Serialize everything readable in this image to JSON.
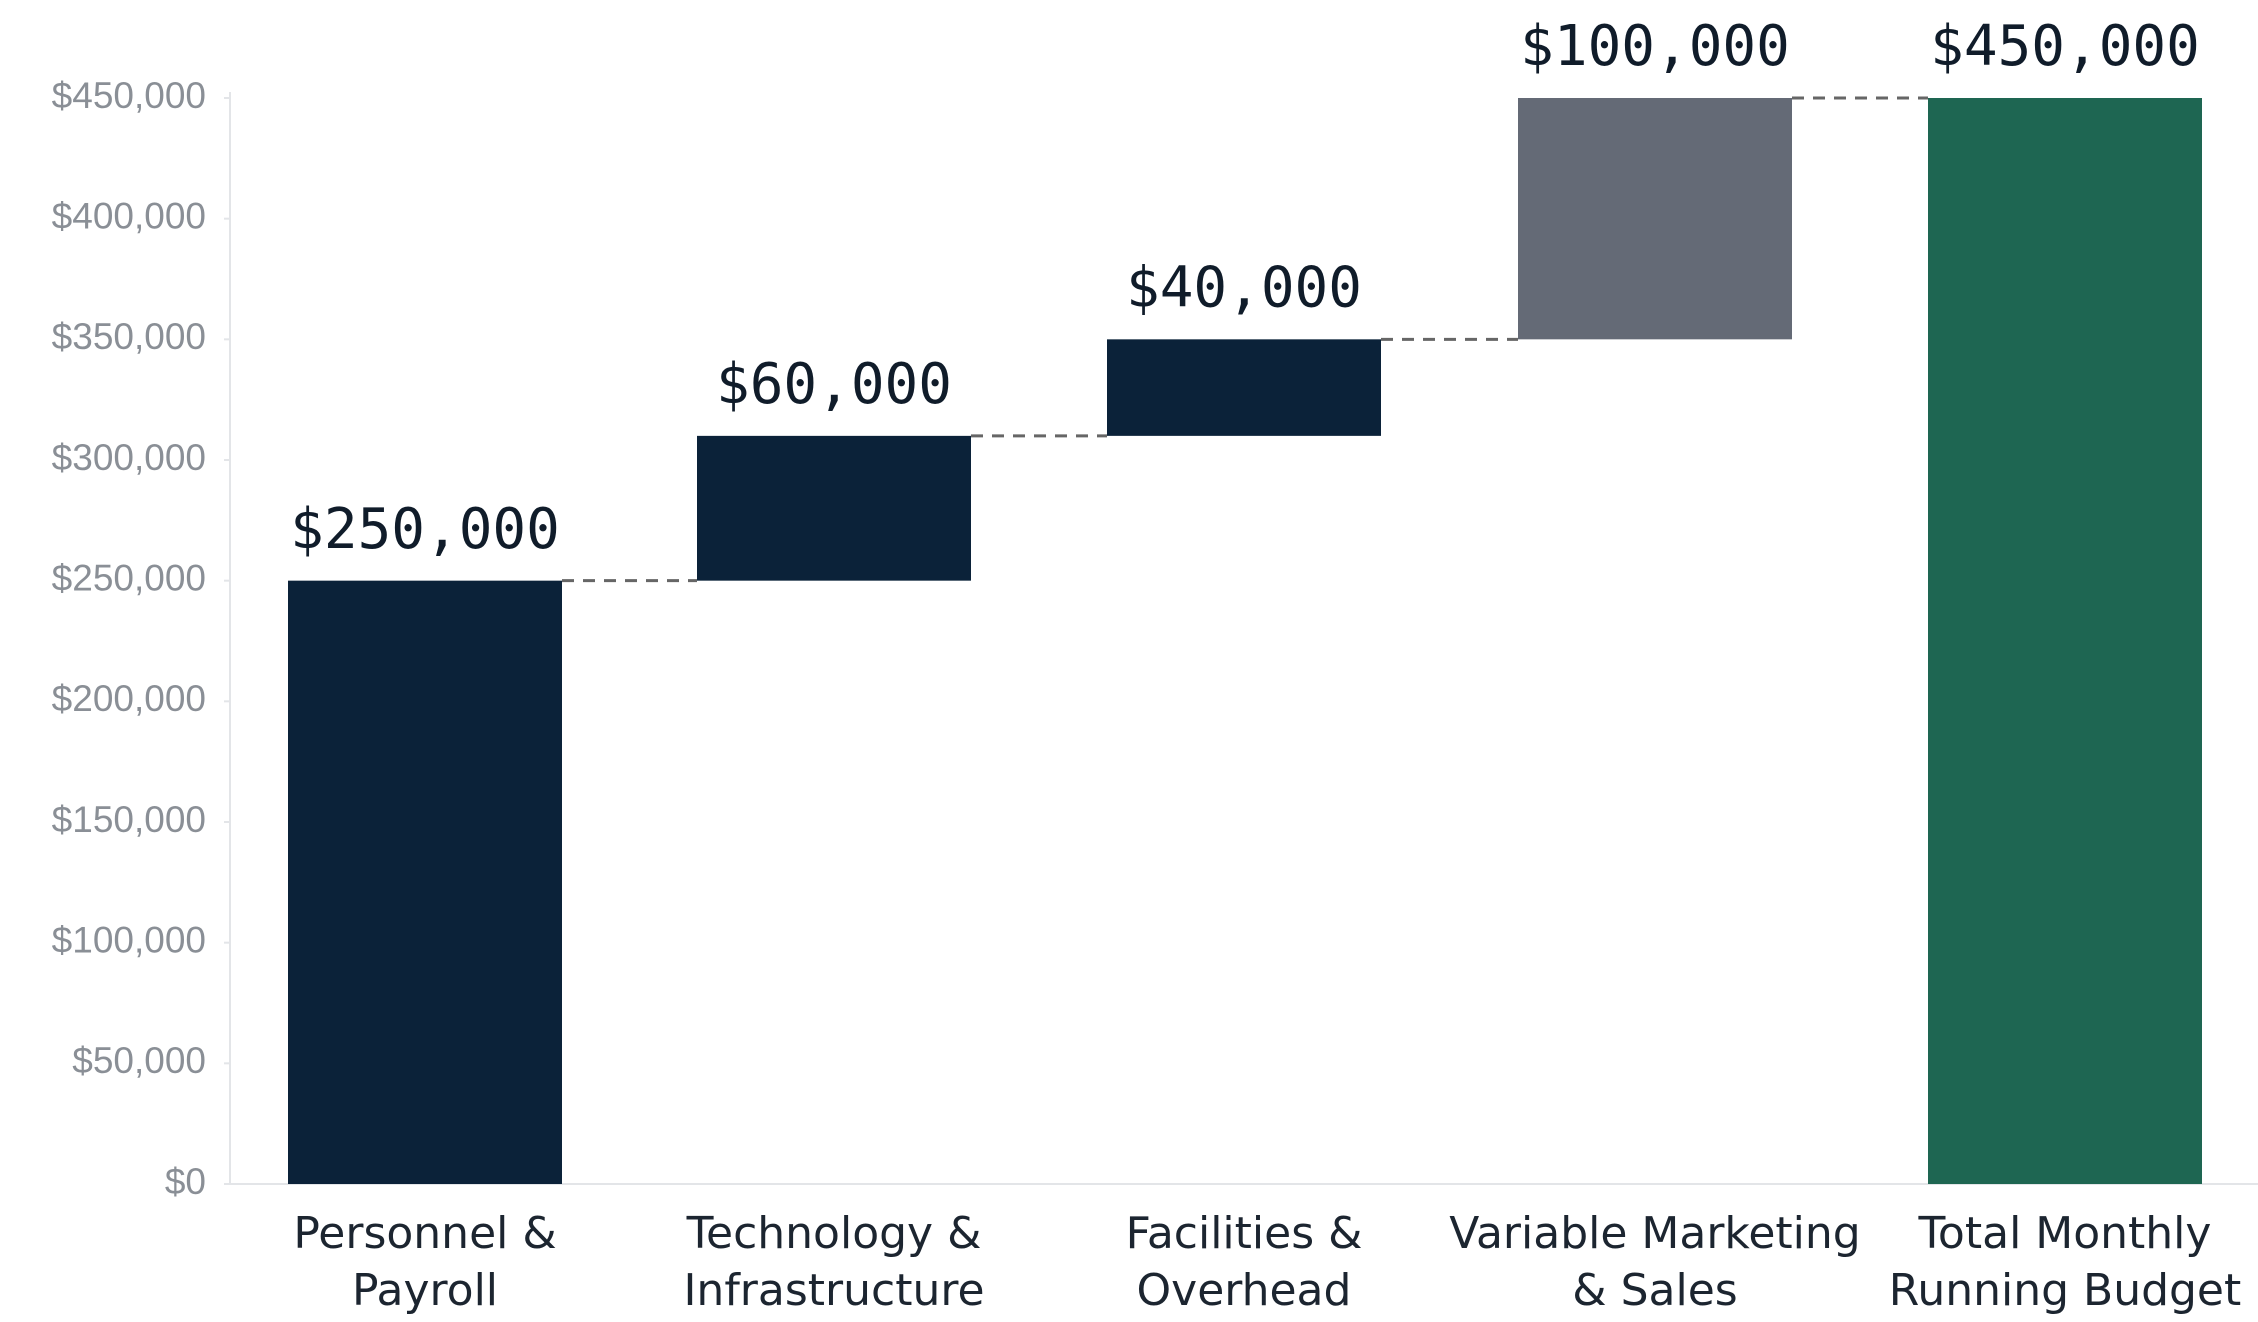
{
  "chart_data": {
    "type": "waterfall",
    "categories": [
      [
        "Personnel &",
        "Payroll"
      ],
      [
        "Technology &",
        "Infrastructure"
      ],
      [
        "Facilities &",
        "Overhead"
      ],
      [
        "Variable Marketing",
        "& Sales"
      ],
      [
        "Total Monthly",
        "Running Budget"
      ]
    ],
    "values": [
      250000,
      60000,
      40000,
      100000,
      450000
    ],
    "value_labels": [
      "$250,000",
      "$60,000",
      "$40,000",
      "$100,000",
      "$450,000"
    ],
    "measure": [
      "relative",
      "relative",
      "relative",
      "relative",
      "total"
    ],
    "colors": [
      "#0b2239",
      "#0b2239",
      "#0b2239",
      "#646a76",
      "#1e6652"
    ],
    "ylim": [
      0,
      450000
    ],
    "yticks": [
      {
        "value": 0,
        "label": "$0"
      },
      {
        "value": 50000,
        "label": "$50,000"
      },
      {
        "value": 100000,
        "label": "$100,000"
      },
      {
        "value": 150000,
        "label": "$150,000"
      },
      {
        "value": 200000,
        "label": "$200,000"
      },
      {
        "value": 250000,
        "label": "$250,000"
      },
      {
        "value": 300000,
        "label": "$300,000"
      },
      {
        "value": 350000,
        "label": "$350,000"
      },
      {
        "value": 400000,
        "label": "$400,000"
      },
      {
        "value": 450000,
        "label": "$450,000"
      }
    ],
    "connectors": true,
    "grid": false
  }
}
